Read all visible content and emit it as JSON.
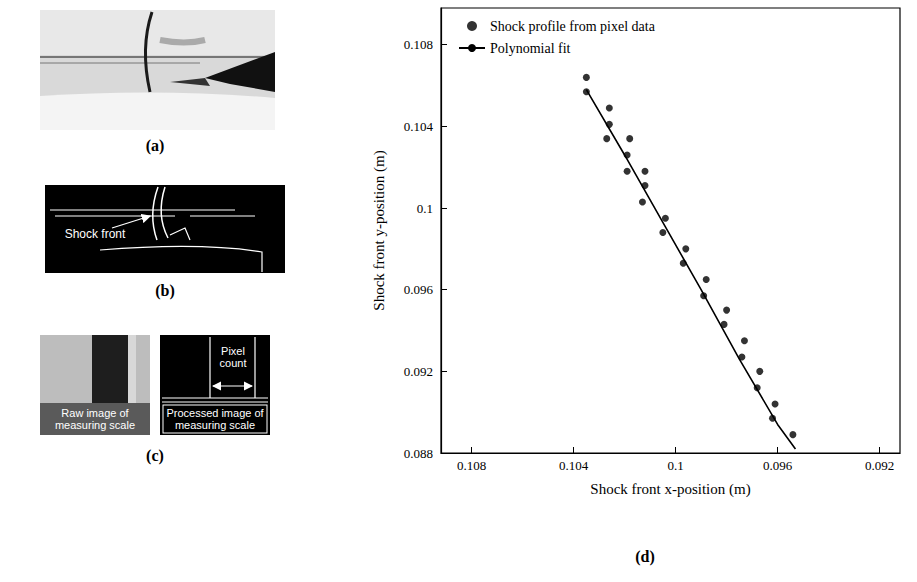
{
  "figure": {
    "panels": [
      {
        "label": "(a)"
      },
      {
        "label": "(b)",
        "annotation": "Shock front"
      },
      {
        "label": "(c)",
        "annotations": {
          "raw": "Raw image of measuring scale",
          "processed": "Processed image of measuring scale",
          "measure": "Pixel count"
        }
      },
      {
        "label": "(d)"
      }
    ]
  },
  "chart_data": {
    "type": "scatter",
    "x_label": "Shock front x-position (m)",
    "y_label": "Shock front y-position (m)",
    "xlim": [
      0.1092,
      0.0912
    ],
    "xticks": [
      0.108,
      0.104,
      0.1,
      0.096,
      0.092
    ],
    "ylim": [
      0.088,
      0.1098
    ],
    "yticks": [
      0.088,
      0.092,
      0.096,
      0.1,
      0.104,
      0.108
    ],
    "grid": false,
    "legend": "upper left",
    "series": [
      {
        "name": "Shock profile from pixel data",
        "type": "scatter",
        "marker": "circle",
        "color": "#000000",
        "x": [
          0.1035,
          0.1035,
          0.1026,
          0.1026,
          0.1027,
          0.1018,
          0.1019,
          0.1019,
          0.1012,
          0.1012,
          0.1013,
          0.1004,
          0.1005,
          0.0996,
          0.0997,
          0.0988,
          0.0989,
          0.098,
          0.0981,
          0.0973,
          0.0974,
          0.0967,
          0.0968,
          0.0961,
          0.0962,
          0.0954
        ],
        "values": [
          0.1064,
          0.1057,
          0.1049,
          0.1041,
          0.1034,
          0.1034,
          0.1026,
          0.1018,
          0.1018,
          0.1011,
          0.1003,
          0.0995,
          0.0988,
          0.098,
          0.0973,
          0.0965,
          0.0957,
          0.095,
          0.0943,
          0.0935,
          0.0927,
          0.092,
          0.0912,
          0.0904,
          0.0897,
          0.0889
        ]
      },
      {
        "name": "Polynomial fit",
        "type": "line",
        "line_style": "solid",
        "color": "#000000",
        "x": [
          0.1035,
          0.102,
          0.1005,
          0.099,
          0.0975,
          0.096,
          0.0953
        ],
        "values": [
          0.1058,
          0.1026,
          0.0993,
          0.096,
          0.0926,
          0.0894,
          0.0882
        ]
      }
    ]
  }
}
